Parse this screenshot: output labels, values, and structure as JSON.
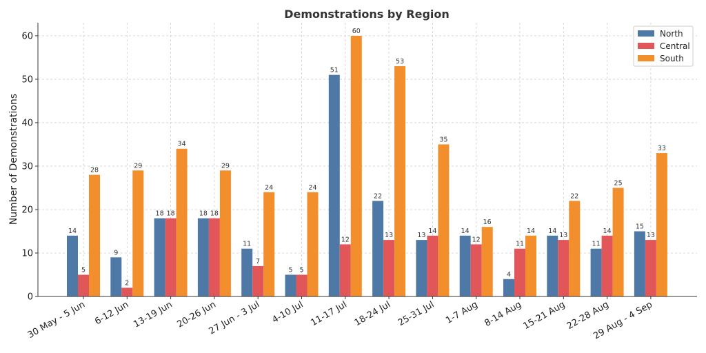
{
  "chart_data": {
    "type": "bar",
    "title": "Demonstrations by Region",
    "xlabel": "",
    "ylabel": "Number of Demonstrations",
    "ylim": [
      0,
      63
    ],
    "yticks": [
      0,
      10,
      20,
      30,
      40,
      50,
      60
    ],
    "grid": true,
    "legend_position": "top-right",
    "categories": [
      "30 May - 5 Jun",
      "6-12 Jun",
      "13-19 Jun",
      "20-26 Jun",
      "27 Jun - 3 Jul",
      "4-10 Jul",
      "11-17 Jul",
      "18-24 Jul",
      "25-31 Jul",
      "1-7 Aug",
      "8-14 Aug",
      "15-21 Aug",
      "22-28 Aug",
      "29 Aug - 4 Sep"
    ],
    "series": [
      {
        "name": "North",
        "color": "#4e79a7",
        "values": [
          14,
          9,
          18,
          18,
          11,
          5,
          51,
          22,
          13,
          14,
          4,
          14,
          11,
          15
        ]
      },
      {
        "name": "Central",
        "color": "#e15759",
        "values": [
          5,
          2,
          18,
          18,
          7,
          5,
          12,
          13,
          14,
          12,
          11,
          13,
          14,
          13
        ]
      },
      {
        "name": "South",
        "color": "#f28e2b",
        "values": [
          28,
          29,
          34,
          29,
          24,
          24,
          60,
          53,
          35,
          16,
          14,
          22,
          25,
          33
        ]
      }
    ]
  }
}
